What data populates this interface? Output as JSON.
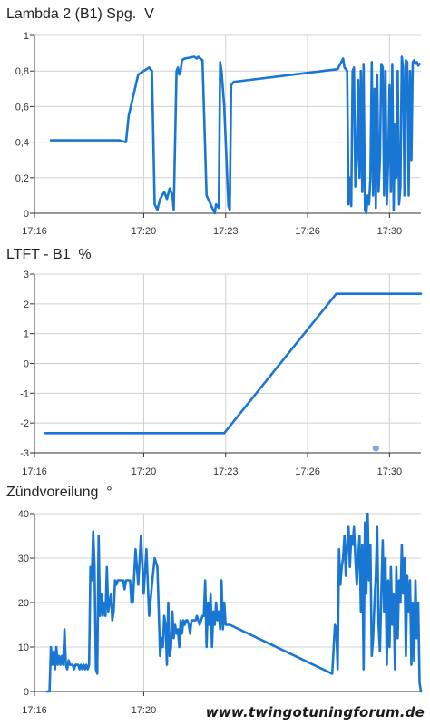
{
  "charts": [
    {
      "title": "Lambda 2 (B1) Spg.  V"
    },
    {
      "title": "LTFT - B1  %"
    },
    {
      "title": "Zündvoreilung  °"
    }
  ],
  "watermark": "www.twingotuningforum.de",
  "colors": {
    "line": "#1976d2",
    "grid": "#d0d0d0",
    "axis": "#333333",
    "marker": "#7ea6dc"
  },
  "chart_data": [
    {
      "type": "line",
      "title": "Lambda 2 (B1) Spg.  V",
      "xlabel": "",
      "ylabel": "",
      "x_ticks": [
        "17:16",
        "17:20",
        "17:23",
        "17:26",
        "17:30"
      ],
      "x_ticks_min": [
        0,
        4,
        7,
        10,
        13
      ],
      "xlim_min": [
        0,
        14.15
      ],
      "ylim": [
        0,
        1
      ],
      "y_ticks": [
        "0",
        "0,2",
        "0,4",
        "0,6",
        "0,8",
        "1"
      ],
      "y_tick_values": [
        0,
        0.2,
        0.4,
        0.6,
        0.8,
        1
      ],
      "grid": true,
      "series": [
        {
          "x_min": [
            0.6,
            3.1,
            3.35,
            3.45,
            3.8,
            4.2,
            4.3,
            4.4,
            4.5,
            4.6,
            4.75,
            4.85,
            4.95,
            5.05,
            5.1,
            5.2,
            5.25,
            5.3,
            5.35,
            5.4,
            5.5,
            5.85,
            5.95,
            6.0,
            6.15,
            6.3,
            6.6,
            6.65,
            6.75,
            6.8,
            6.85,
            6.95,
            7.1,
            7.15,
            7.2,
            7.3,
            7.35,
            11.1,
            11.3,
            11.35,
            11.45,
            11.5,
            11.55,
            11.6,
            11.65,
            11.7,
            11.75,
            11.8,
            11.85,
            11.9,
            11.95,
            12.0,
            12.05,
            12.1,
            12.15,
            12.2,
            12.25,
            12.3,
            12.35,
            12.4,
            12.45,
            12.5,
            12.55,
            12.6,
            12.65,
            12.7,
            12.75,
            12.8,
            12.85,
            12.9,
            12.95,
            13.0,
            13.05,
            13.1,
            13.15,
            13.2,
            13.25,
            13.3,
            13.35,
            13.4,
            13.45,
            13.5,
            13.55,
            13.6,
            13.65,
            13.7,
            13.75,
            13.8,
            13.85,
            13.9,
            13.95,
            14.0,
            14.05,
            14.1
          ],
          "y": [
            0.41,
            0.41,
            0.4,
            0.55,
            0.78,
            0.82,
            0.8,
            0.05,
            0.02,
            0.08,
            0.12,
            0.08,
            0.14,
            0.1,
            0.02,
            0.8,
            0.82,
            0.78,
            0.8,
            0.86,
            0.87,
            0.88,
            0.87,
            0.88,
            0.86,
            0.1,
            0.0,
            0.05,
            0.03,
            0.85,
            0.8,
            0.6,
            0.04,
            0.02,
            0.72,
            0.74,
            0.74,
            0.81,
            0.87,
            0.82,
            0.8,
            0.05,
            0.2,
            0.04,
            0.8,
            0.82,
            0.15,
            0.3,
            0.75,
            0.2,
            0.8,
            0.12,
            0.84,
            0.02,
            0.0,
            0.1,
            0.05,
            0.2,
            0.85,
            0.1,
            0.7,
            0.03,
            0.78,
            0.12,
            0.3,
            0.84,
            0.82,
            0.1,
            0.8,
            0.05,
            0.3,
            0.72,
            0.12,
            0.84,
            0.02,
            0.5,
            0.2,
            0.8,
            0.05,
            0.15,
            0.88,
            0.82,
            0.1,
            0.86,
            0.85,
            0.1,
            0.8,
            0.3,
            0.85,
            0.86,
            0.84,
            0.85,
            0.83,
            0.84
          ]
        }
      ]
    },
    {
      "type": "line",
      "title": "LTFT - B1  %",
      "xlabel": "",
      "ylabel": "",
      "x_ticks": [
        "17:16",
        "17:20",
        "17:23",
        "17:26",
        "17:30"
      ],
      "x_ticks_min": [
        0,
        4,
        7,
        10,
        13
      ],
      "xlim_min": [
        0,
        14.15
      ],
      "ylim": [
        -3,
        3
      ],
      "y_ticks": [
        "-3",
        "-2",
        "-1",
        "0",
        "1",
        "2",
        "3"
      ],
      "y_tick_values": [
        -3,
        -2,
        -1,
        0,
        1,
        2,
        3
      ],
      "grid": true,
      "series": [
        {
          "x_min": [
            0.4,
            6.95,
            11.05,
            14.15
          ],
          "y": [
            -2.34,
            -2.34,
            2.34,
            2.34
          ]
        }
      ],
      "marker": {
        "x_min": 12.5,
        "y": -2.85
      }
    },
    {
      "type": "line",
      "title": "Zündvoreilung  °",
      "xlabel": "",
      "ylabel": "",
      "x_ticks": [
        "17:16",
        "17:20"
      ],
      "x_ticks_min": [
        0,
        4
      ],
      "xlim_min": [
        0,
        14.15
      ],
      "ylim": [
        0,
        40
      ],
      "y_ticks": [
        "0",
        "10",
        "20",
        "30",
        "40"
      ],
      "y_tick_values": [
        0,
        10,
        20,
        30,
        40
      ],
      "grid": true,
      "series": [
        {
          "x_min": [
            0.45,
            0.5,
            0.55,
            0.6,
            0.65,
            0.7,
            0.75,
            0.8,
            0.85,
            0.9,
            0.95,
            1.0,
            1.05,
            1.1,
            1.15,
            1.2,
            1.25,
            1.3,
            1.35,
            1.4,
            1.45,
            1.5,
            1.55,
            1.6,
            1.65,
            1.7,
            1.75,
            1.8,
            1.85,
            1.9,
            1.95,
            2.0,
            2.05,
            2.1,
            2.15,
            2.2,
            2.25,
            2.3,
            2.35,
            2.4,
            2.45,
            2.5,
            2.55,
            2.6,
            2.65,
            2.7,
            2.75,
            2.8,
            2.85,
            2.9,
            2.95,
            3.0,
            3.05,
            3.1,
            3.15,
            3.2,
            3.25,
            3.3,
            3.35,
            3.4,
            3.45,
            3.5,
            3.55,
            3.6,
            3.7,
            3.8,
            3.9,
            4.0,
            4.1,
            4.2,
            4.3,
            4.4,
            4.5,
            4.6,
            4.65,
            4.7,
            4.75,
            4.8,
            4.85,
            4.9,
            4.95,
            5.0,
            5.05,
            5.1,
            5.15,
            5.2,
            5.25,
            5.3,
            5.35,
            5.4,
            5.45,
            5.5,
            5.55,
            5.6,
            5.65,
            5.7,
            5.75,
            5.8,
            5.85,
            5.9,
            5.95,
            6.0,
            6.05,
            6.1,
            6.15,
            6.2,
            6.25,
            6.3,
            6.35,
            6.4,
            6.45,
            6.5,
            6.55,
            6.6,
            6.65,
            6.7,
            6.75,
            6.8,
            6.85,
            6.9,
            6.95,
            7.0,
            7.05,
            7.1,
            7.15,
            10.9,
            11.0,
            11.05,
            11.1,
            11.15,
            11.2,
            11.25,
            11.3,
            11.35,
            11.4,
            11.45,
            11.5,
            11.55,
            11.6,
            11.65,
            11.7,
            11.75,
            11.8,
            11.85,
            11.9,
            11.95,
            12.0,
            12.05,
            12.1,
            12.15,
            12.2,
            12.25,
            12.3,
            12.35,
            12.4,
            12.45,
            12.5,
            12.55,
            12.6,
            12.65,
            12.7,
            12.75,
            12.8,
            12.85,
            12.9,
            12.95,
            13.0,
            13.05,
            13.1,
            13.15,
            13.2,
            13.25,
            13.3,
            13.35,
            13.4,
            13.45,
            13.5,
            13.55,
            13.6,
            13.65,
            13.7,
            13.75,
            13.8,
            13.85,
            13.9,
            13.95,
            14.0,
            14.05,
            14.1,
            14.15
          ],
          "y": [
            0,
            0,
            0,
            10,
            6,
            9,
            5,
            10,
            6,
            8,
            6,
            8,
            6,
            14,
            6,
            5,
            7,
            6,
            6,
            6,
            5,
            6,
            6,
            6,
            5,
            6,
            5,
            6,
            5,
            6,
            5,
            6,
            28,
            25,
            36,
            28,
            5,
            4,
            35,
            17,
            22,
            17,
            20,
            17,
            28,
            18,
            20,
            22,
            16,
            18,
            25,
            24,
            25,
            25,
            25,
            25,
            25,
            23,
            25,
            25,
            25,
            25,
            20,
            20,
            32,
            24,
            35,
            22,
            32,
            17,
            24,
            30,
            28,
            8,
            12,
            10,
            17,
            15,
            6,
            20,
            8,
            10,
            18,
            12,
            15,
            13,
            14,
            10,
            16,
            13,
            16,
            15,
            16,
            16,
            15,
            13,
            16,
            16,
            16,
            16,
            17,
            16,
            15,
            16,
            17,
            17,
            25,
            10,
            20,
            15,
            22,
            10,
            18,
            15,
            20,
            16,
            18,
            14,
            25,
            14,
            20,
            15,
            15,
            15,
            15,
            4,
            15,
            14,
            5,
            32,
            24,
            28,
            30,
            35,
            26,
            33,
            37,
            28,
            35,
            33,
            37,
            30,
            24,
            30,
            35,
            18,
            33,
            5,
            38,
            22,
            40,
            25,
            33,
            8,
            12,
            20,
            26,
            37,
            15,
            9,
            22,
            34,
            18,
            30,
            6,
            25,
            10,
            28,
            15,
            22,
            5,
            28,
            12,
            25,
            20,
            33,
            22,
            30,
            8,
            26,
            18,
            25,
            6,
            20,
            7,
            25,
            12,
            20,
            2,
            0,
            28,
            10,
            20,
            7
          ]
        }
      ]
    }
  ]
}
